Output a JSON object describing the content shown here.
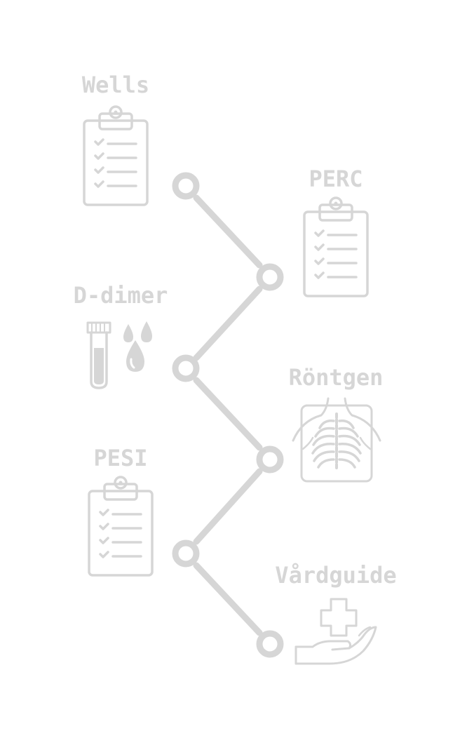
{
  "theme": {
    "line_color": "#d6d6d6",
    "icon_color": "#d6d6d6",
    "label_color": "#d6d6d6",
    "background": "#ffffff"
  },
  "steps": [
    {
      "label": "Wells",
      "icon": "clipboard-checklist-icon"
    },
    {
      "label": "PERC",
      "icon": "clipboard-checklist-icon"
    },
    {
      "label": "D-dimer",
      "icon": "test-tube-blood-drops-icon"
    },
    {
      "label": "Röntgen",
      "icon": "chest-xray-icon"
    },
    {
      "label": "PESI",
      "icon": "clipboard-checklist-icon"
    },
    {
      "label": "Vårdguide",
      "icon": "hand-medical-cross-icon"
    }
  ]
}
